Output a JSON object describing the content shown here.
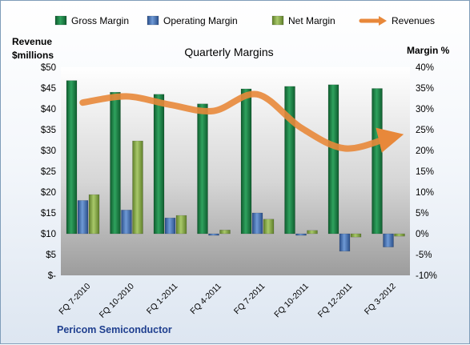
{
  "chart_data": {
    "type": "bar",
    "title": "Quarterly Margins",
    "left_axis_title": [
      "Revenue",
      "$millions"
    ],
    "right_axis_title": "Margin %",
    "footer": "Pericom Semiconductor",
    "categories": [
      "FQ 7-2010",
      "FQ 10-2010",
      "FQ 1-2011",
      "FQ 4-2011",
      "FQ 7-2011",
      "FQ 10-2011",
      "FQ 12-2011",
      "FQ 3-2012"
    ],
    "left_axis": {
      "min": 0,
      "max": 50,
      "step": 5,
      "tick_labels": [
        "$-",
        "$5",
        "$10",
        "$15",
        "$20",
        "$25",
        "$30",
        "$35",
        "$40",
        "$45",
        "$50"
      ]
    },
    "right_axis": {
      "min": -10,
      "max": 40,
      "step": 5,
      "tick_labels": [
        "-10%",
        "-5%",
        "0%",
        "5%",
        "10%",
        "15%",
        "20%",
        "25%",
        "30%",
        "35%",
        "40%"
      ]
    },
    "series": [
      {
        "name": "Gross Margin",
        "axis": "right",
        "color": "#1e8a4a",
        "values": [
          36.8,
          34.0,
          33.5,
          31.2,
          34.8,
          35.4,
          35.8,
          34.9
        ]
      },
      {
        "name": "Operating Margin",
        "axis": "right",
        "color": "#4f7fc0",
        "values": [
          8.0,
          5.7,
          3.8,
          -0.4,
          5.0,
          -0.4,
          -4.2,
          -3.2
        ]
      },
      {
        "name": "Net Margin",
        "axis": "right",
        "color": "#8aaf4a",
        "values": [
          9.4,
          22.3,
          4.4,
          0.9,
          3.5,
          0.8,
          -0.8,
          -0.6
        ]
      },
      {
        "name": "Revenues",
        "axis": "left",
        "type": "line",
        "color": "#e8883a",
        "values": [
          41.5,
          43.0,
          41.0,
          39.5,
          43.5,
          35.5,
          30.5,
          33.0
        ]
      }
    ],
    "legend_position": "top",
    "grid": false
  }
}
